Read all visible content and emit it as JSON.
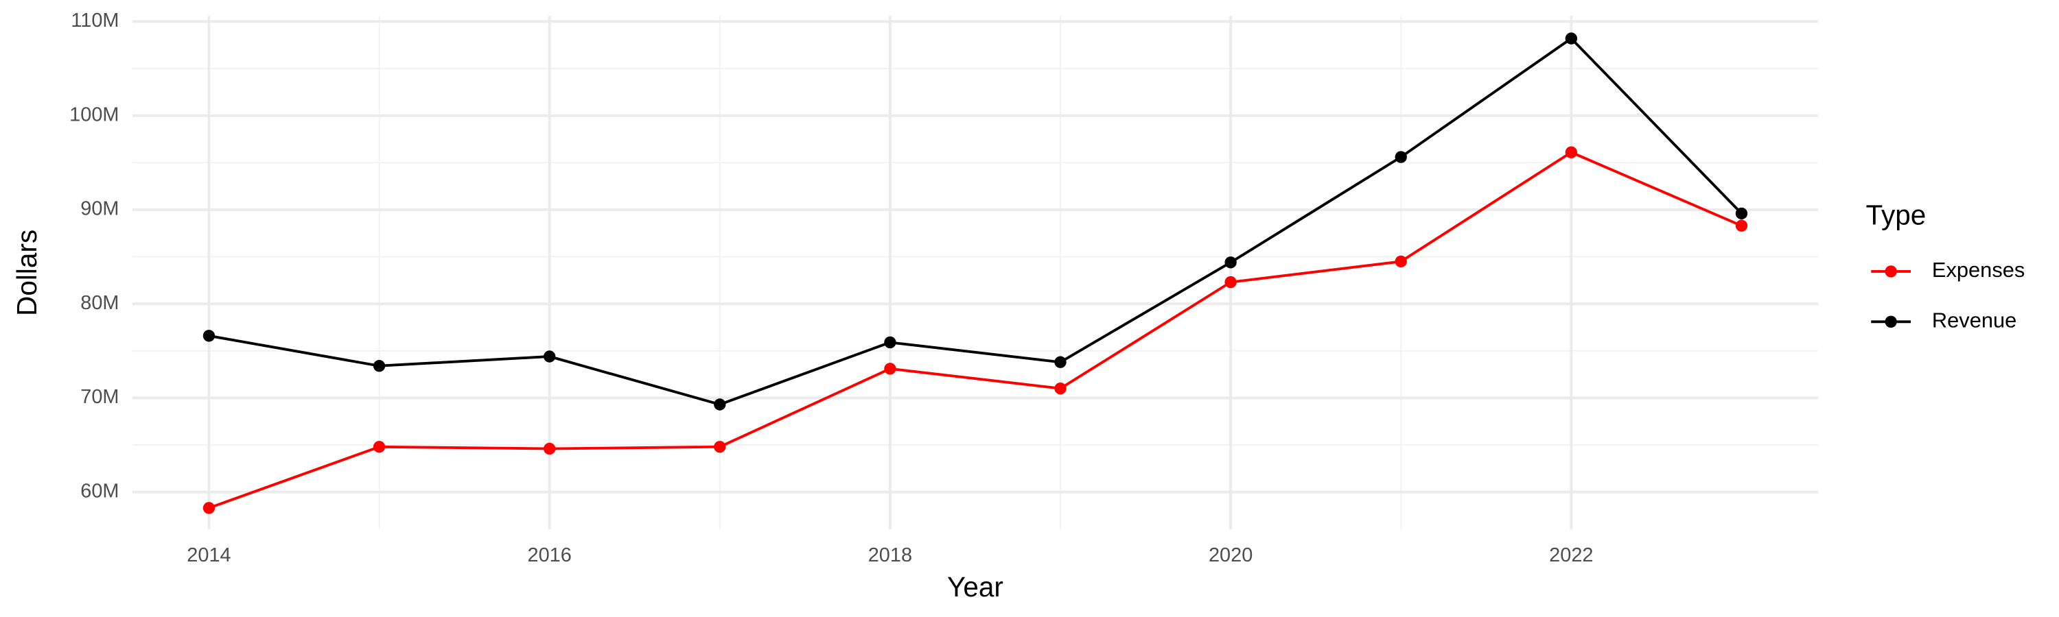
{
  "chart_data": {
    "type": "line",
    "x_label": "Year",
    "y_label": "Dollars",
    "legend_title": "Type",
    "legend": "right",
    "grid": true,
    "x": [
      2014,
      2015,
      2016,
      2017,
      2018,
      2019,
      2020,
      2021,
      2022,
      2023
    ],
    "series": [
      {
        "name": "Expenses",
        "color": "#ff0000",
        "values": [
          58300000,
          64800000,
          64600000,
          64800000,
          73100000,
          71000000,
          82300000,
          84500000,
          96100000,
          88300000
        ]
      },
      {
        "name": "Revenue",
        "color": "#000000",
        "values": [
          76600000,
          73400000,
          74400000,
          69300000,
          75900000,
          73800000,
          84400000,
          95600000,
          108200000,
          89600000
        ]
      }
    ],
    "xlim": [
      2013.55,
      2023.45
    ],
    "xticks": [
      2014,
      2016,
      2018,
      2020,
      2022
    ],
    "ylim": [
      56000000,
      110600000
    ],
    "yticks": [
      {
        "value": 60000000,
        "label": "60M"
      },
      {
        "value": 70000000,
        "label": "70M"
      },
      {
        "value": 80000000,
        "label": "80M"
      },
      {
        "value": 90000000,
        "label": "90M"
      },
      {
        "value": 100000000,
        "label": "100M"
      },
      {
        "value": 110000000,
        "label": "110M"
      }
    ]
  }
}
